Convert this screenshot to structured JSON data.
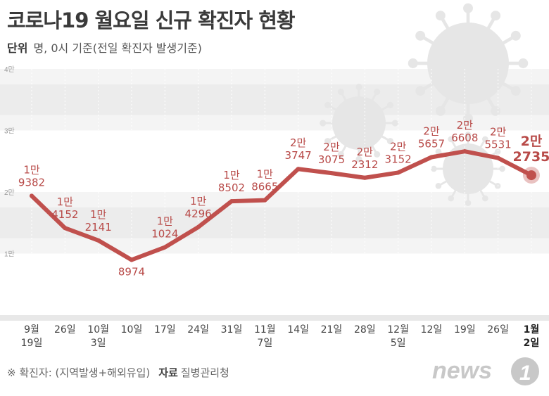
{
  "header": {
    "title": "코로나19 월요일 신규 확진자 현황",
    "unit_label": "단위",
    "unit_text": "명, 0시 기준(전일 확진자 발생기준)"
  },
  "footer": {
    "note": "※ 확진자: (지역발생+해외유입)",
    "source_label": "자료",
    "source": "질병관리청"
  },
  "logo": {
    "text": "news1"
  },
  "colors": {
    "line": "#c0504d",
    "label": "#b84a48",
    "band": "#ececec",
    "virus": "#e6e6e6"
  },
  "chart_data": {
    "type": "line",
    "title": "코로나19 월요일 신규 확진자 현황",
    "ylabel": "명",
    "ylim": [
      0,
      40000
    ],
    "yticks": [
      {
        "value": 10000,
        "label": "1만"
      },
      {
        "value": 20000,
        "label": "2만"
      },
      {
        "value": 30000,
        "label": "3만"
      },
      {
        "value": 40000,
        "label": "4만"
      }
    ],
    "categories": [
      {
        "top": "9월",
        "bottom": "19일"
      },
      {
        "top": "26일",
        "bottom": ""
      },
      {
        "top": "10월",
        "bottom": "3일"
      },
      {
        "top": "10일",
        "bottom": ""
      },
      {
        "top": "17일",
        "bottom": ""
      },
      {
        "top": "24일",
        "bottom": ""
      },
      {
        "top": "31일",
        "bottom": ""
      },
      {
        "top": "11월",
        "bottom": "7일"
      },
      {
        "top": "14일",
        "bottom": ""
      },
      {
        "top": "21일",
        "bottom": ""
      },
      {
        "top": "28일",
        "bottom": ""
      },
      {
        "top": "12월",
        "bottom": "5일"
      },
      {
        "top": "12일",
        "bottom": ""
      },
      {
        "top": "19일",
        "bottom": ""
      },
      {
        "top": "26일",
        "bottom": ""
      },
      {
        "top": "1월",
        "bottom": "2일"
      }
    ],
    "values": [
      19382,
      14152,
      12141,
      8974,
      11024,
      14296,
      18502,
      18665,
      23747,
      23075,
      22312,
      23152,
      25657,
      26608,
      25531,
      22735
    ],
    "point_labels": [
      {
        "top": "1만",
        "bottom": "9382"
      },
      {
        "top": "1만",
        "bottom": "4152"
      },
      {
        "top": "1만",
        "bottom": "2141"
      },
      {
        "top": "",
        "bottom": "8974"
      },
      {
        "top": "1만",
        "bottom": "1024"
      },
      {
        "top": "1만",
        "bottom": "4296"
      },
      {
        "top": "1만",
        "bottom": "8502"
      },
      {
        "top": "1만",
        "bottom": "8665"
      },
      {
        "top": "2만",
        "bottom": "3747"
      },
      {
        "top": "2만",
        "bottom": "3075"
      },
      {
        "top": "2만",
        "bottom": "2312"
      },
      {
        "top": "2만",
        "bottom": "3152"
      },
      {
        "top": "2만",
        "bottom": "5657"
      },
      {
        "top": "2만",
        "bottom": "6608"
      },
      {
        "top": "2만",
        "bottom": "5531"
      },
      {
        "top": "2만",
        "bottom": "2735"
      }
    ],
    "highlight_index": 15
  }
}
